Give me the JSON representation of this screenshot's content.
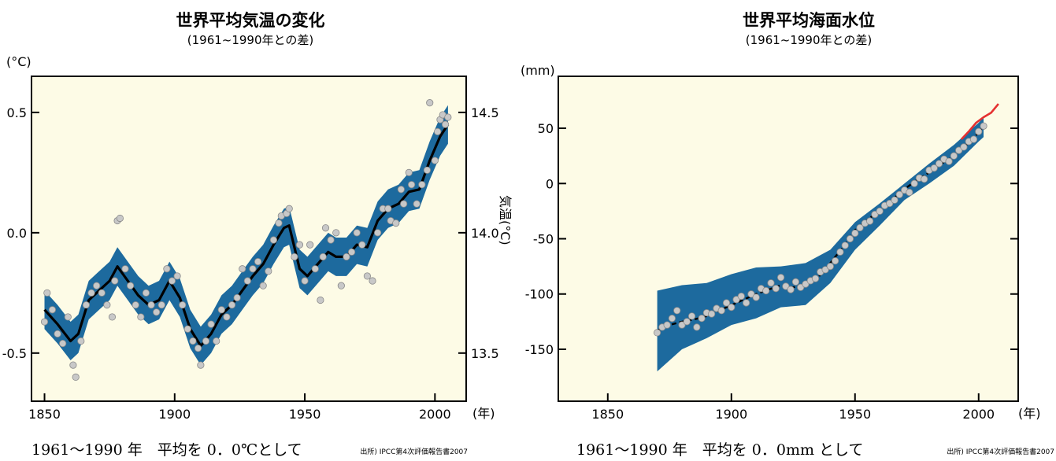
{
  "chart_data": [
    {
      "type": "line",
      "title": "世界平均気温の変化",
      "subtitle": "(1961~1990年との差)",
      "y_unit": "(°C)",
      "x_unit": "(年)",
      "right_axis_label": "気温(°C)",
      "xlim": [
        1845,
        2012
      ],
      "ylim": [
        -0.7,
        0.65
      ],
      "xticks": [
        {
          "v": 1850,
          "label": "1850"
        },
        {
          "v": 1900,
          "label": "1900"
        },
        {
          "v": 1950,
          "label": "1950"
        },
        {
          "v": 2000,
          "label": "2000"
        }
      ],
      "yticks": [
        {
          "v": 0.5,
          "label": "0.5"
        },
        {
          "v": 0.0,
          "label": "0.0"
        },
        {
          "v": -0.5,
          "label": "-0.5"
        }
      ],
      "right_ticks": [
        {
          "v": 0.5,
          "label": "14.5"
        },
        {
          "v": 0.0,
          "label": "14.0"
        },
        {
          "v": -0.5,
          "label": "13.5"
        }
      ],
      "caption": "1961～1990 年　平均を 0．0℃として",
      "source": "出所) IPCC第4次評価報告書2007",
      "series": [
        {
          "role": "smoothed",
          "x": [
            1850,
            1855,
            1860,
            1863,
            1867,
            1871,
            1875,
            1878,
            1882,
            1886,
            1890,
            1894,
            1898,
            1902,
            1906,
            1910,
            1914,
            1918,
            1922,
            1926,
            1930,
            1934,
            1938,
            1942,
            1944,
            1948,
            1951,
            1955,
            1959,
            1962,
            1966,
            1970,
            1974,
            1978,
            1982,
            1986,
            1990,
            1994,
            1998,
            2002,
            2005
          ],
          "y": [
            -0.32,
            -0.38,
            -0.45,
            -0.42,
            -0.28,
            -0.24,
            -0.2,
            -0.14,
            -0.2,
            -0.26,
            -0.3,
            -0.28,
            -0.2,
            -0.27,
            -0.4,
            -0.47,
            -0.42,
            -0.34,
            -0.3,
            -0.24,
            -0.18,
            -0.13,
            -0.05,
            0.02,
            0.03,
            -0.15,
            -0.18,
            -0.13,
            -0.08,
            -0.1,
            -0.1,
            -0.05,
            -0.06,
            0.05,
            0.1,
            0.12,
            0.17,
            0.18,
            0.3,
            0.4,
            0.45
          ],
          "band": 0.08
        },
        {
          "role": "annual",
          "x": [
            1850,
            1851,
            1853,
            1855,
            1857,
            1859,
            1861,
            1862,
            1864,
            1866,
            1868,
            1870,
            1872,
            1874,
            1876,
            1877,
            1878,
            1879,
            1881,
            1883,
            1885,
            1887,
            1889,
            1891,
            1893,
            1895,
            1897,
            1899,
            1901,
            1903,
            1905,
            1907,
            1909,
            1910,
            1912,
            1914,
            1916,
            1918,
            1920,
            1922,
            1924,
            1926,
            1928,
            1930,
            1932,
            1934,
            1936,
            1938,
            1940,
            1941,
            1943,
            1944,
            1946,
            1948,
            1950,
            1952,
            1954,
            1956,
            1957,
            1958,
            1960,
            1962,
            1964,
            1966,
            1968,
            1970,
            1972,
            1974,
            1976,
            1978,
            1980,
            1982,
            1983,
            1985,
            1987,
            1988,
            1990,
            1991,
            1993,
            1995,
            1997,
            1998,
            2000,
            2001,
            2002,
            2003,
            2004,
            2005
          ],
          "y": [
            -0.37,
            -0.25,
            -0.32,
            -0.42,
            -0.46,
            -0.35,
            -0.55,
            -0.6,
            -0.45,
            -0.3,
            -0.25,
            -0.22,
            -0.25,
            -0.3,
            -0.35,
            -0.2,
            0.05,
            0.06,
            -0.15,
            -0.22,
            -0.3,
            -0.35,
            -0.25,
            -0.3,
            -0.33,
            -0.3,
            -0.15,
            -0.2,
            -0.18,
            -0.3,
            -0.4,
            -0.45,
            -0.48,
            -0.55,
            -0.45,
            -0.38,
            -0.45,
            -0.32,
            -0.35,
            -0.3,
            -0.27,
            -0.15,
            -0.2,
            -0.15,
            -0.12,
            -0.22,
            -0.16,
            -0.03,
            0.04,
            0.07,
            0.08,
            0.1,
            -0.1,
            -0.05,
            -0.2,
            -0.05,
            -0.15,
            -0.28,
            -0.1,
            0.02,
            -0.03,
            0.0,
            -0.22,
            -0.1,
            -0.08,
            0.0,
            -0.05,
            -0.18,
            -0.2,
            0.0,
            0.1,
            0.1,
            0.05,
            0.04,
            0.18,
            0.12,
            0.25,
            0.2,
            0.12,
            0.2,
            0.26,
            0.54,
            0.3,
            0.42,
            0.47,
            0.49,
            0.45,
            0.48
          ]
        }
      ]
    },
    {
      "type": "line",
      "title": "世界平均海面水位",
      "subtitle": "(1961~1990年との差)",
      "y_unit": "(mm)",
      "x_unit": "(年)",
      "xlim": [
        1830,
        2016
      ],
      "ylim": [
        -197,
        97
      ],
      "xticks": [
        {
          "v": 1850,
          "label": "1850"
        },
        {
          "v": 1900,
          "label": "1900"
        },
        {
          "v": 1950,
          "label": "1950"
        },
        {
          "v": 2000,
          "label": "2000"
        }
      ],
      "yticks": [
        {
          "v": 50,
          "label": "50"
        },
        {
          "v": 0,
          "label": "0"
        },
        {
          "v": -50,
          "label": "-50"
        },
        {
          "v": -100,
          "label": "-100"
        },
        {
          "v": -150,
          "label": "-150"
        }
      ],
      "caption": "1961～1990 年　平均を 0．0mm として",
      "source": "出所) IPCC第4次評価報告書2007",
      "series": [
        {
          "role": "band_upper",
          "x": [
            1870,
            1880,
            1890,
            1900,
            1910,
            1920,
            1930,
            1940,
            1950,
            1960,
            1970,
            1980,
            1990,
            2000,
            2002
          ],
          "y": [
            -97,
            -92,
            -90,
            -82,
            -76,
            -75,
            -72,
            -60,
            -35,
            -18,
            0,
            18,
            35,
            55,
            60
          ]
        },
        {
          "role": "band_lower",
          "x": [
            1870,
            1880,
            1890,
            1900,
            1910,
            1920,
            1930,
            1940,
            1950,
            1960,
            1970,
            1980,
            1990,
            2000,
            2002
          ],
          "y": [
            -170,
            -150,
            -140,
            -128,
            -122,
            -112,
            -110,
            -90,
            -60,
            -38,
            -15,
            0,
            16,
            38,
            42
          ]
        },
        {
          "role": "smoothed",
          "x": [
            1870,
            1875,
            1880,
            1885,
            1890,
            1895,
            1900,
            1905,
            1910,
            1915,
            1920,
            1925,
            1930,
            1935,
            1940,
            1945,
            1950,
            1955,
            1960,
            1965,
            1970,
            1975,
            1980,
            1985,
            1990,
            1995,
            2000,
            2002
          ],
          "y": [
            -133,
            -128,
            -125,
            -123,
            -120,
            -115,
            -110,
            -105,
            -100,
            -96,
            -92,
            -94,
            -91,
            -85,
            -72,
            -58,
            -42,
            -33,
            -24,
            -15,
            -5,
            3,
            10,
            18,
            25,
            35,
            46,
            52
          ]
        },
        {
          "role": "annual",
          "x": [
            1870,
            1872,
            1874,
            1876,
            1878,
            1880,
            1882,
            1884,
            1886,
            1888,
            1890,
            1892,
            1894,
            1896,
            1898,
            1900,
            1902,
            1904,
            1906,
            1908,
            1910,
            1912,
            1914,
            1916,
            1918,
            1920,
            1922,
            1924,
            1926,
            1928,
            1930,
            1932,
            1934,
            1936,
            1938,
            1940,
            1942,
            1944,
            1946,
            1948,
            1950,
            1952,
            1954,
            1956,
            1958,
            1960,
            1962,
            1964,
            1966,
            1968,
            1970,
            1972,
            1974,
            1976,
            1978,
            1980,
            1982,
            1984,
            1986,
            1988,
            1990,
            1992,
            1994,
            1996,
            1998,
            2000,
            2002
          ],
          "y": [
            -135,
            -130,
            -128,
            -122,
            -115,
            -128,
            -125,
            -120,
            -130,
            -122,
            -117,
            -118,
            -113,
            -115,
            -108,
            -112,
            -105,
            -102,
            -108,
            -100,
            -103,
            -95,
            -97,
            -90,
            -95,
            -85,
            -93,
            -96,
            -89,
            -94,
            -91,
            -88,
            -86,
            -80,
            -78,
            -75,
            -70,
            -62,
            -56,
            -50,
            -45,
            -40,
            -36,
            -34,
            -28,
            -25,
            -20,
            -18,
            -15,
            -10,
            -6,
            -8,
            0,
            5,
            4,
            12,
            14,
            18,
            22,
            20,
            25,
            30,
            33,
            38,
            40,
            47,
            52
          ]
        },
        {
          "role": "satellite",
          "x": [
            1993,
            1996,
            1999,
            2002,
            2005,
            2008
          ],
          "y": [
            40,
            47,
            55,
            60,
            64,
            72
          ]
        }
      ]
    }
  ]
}
